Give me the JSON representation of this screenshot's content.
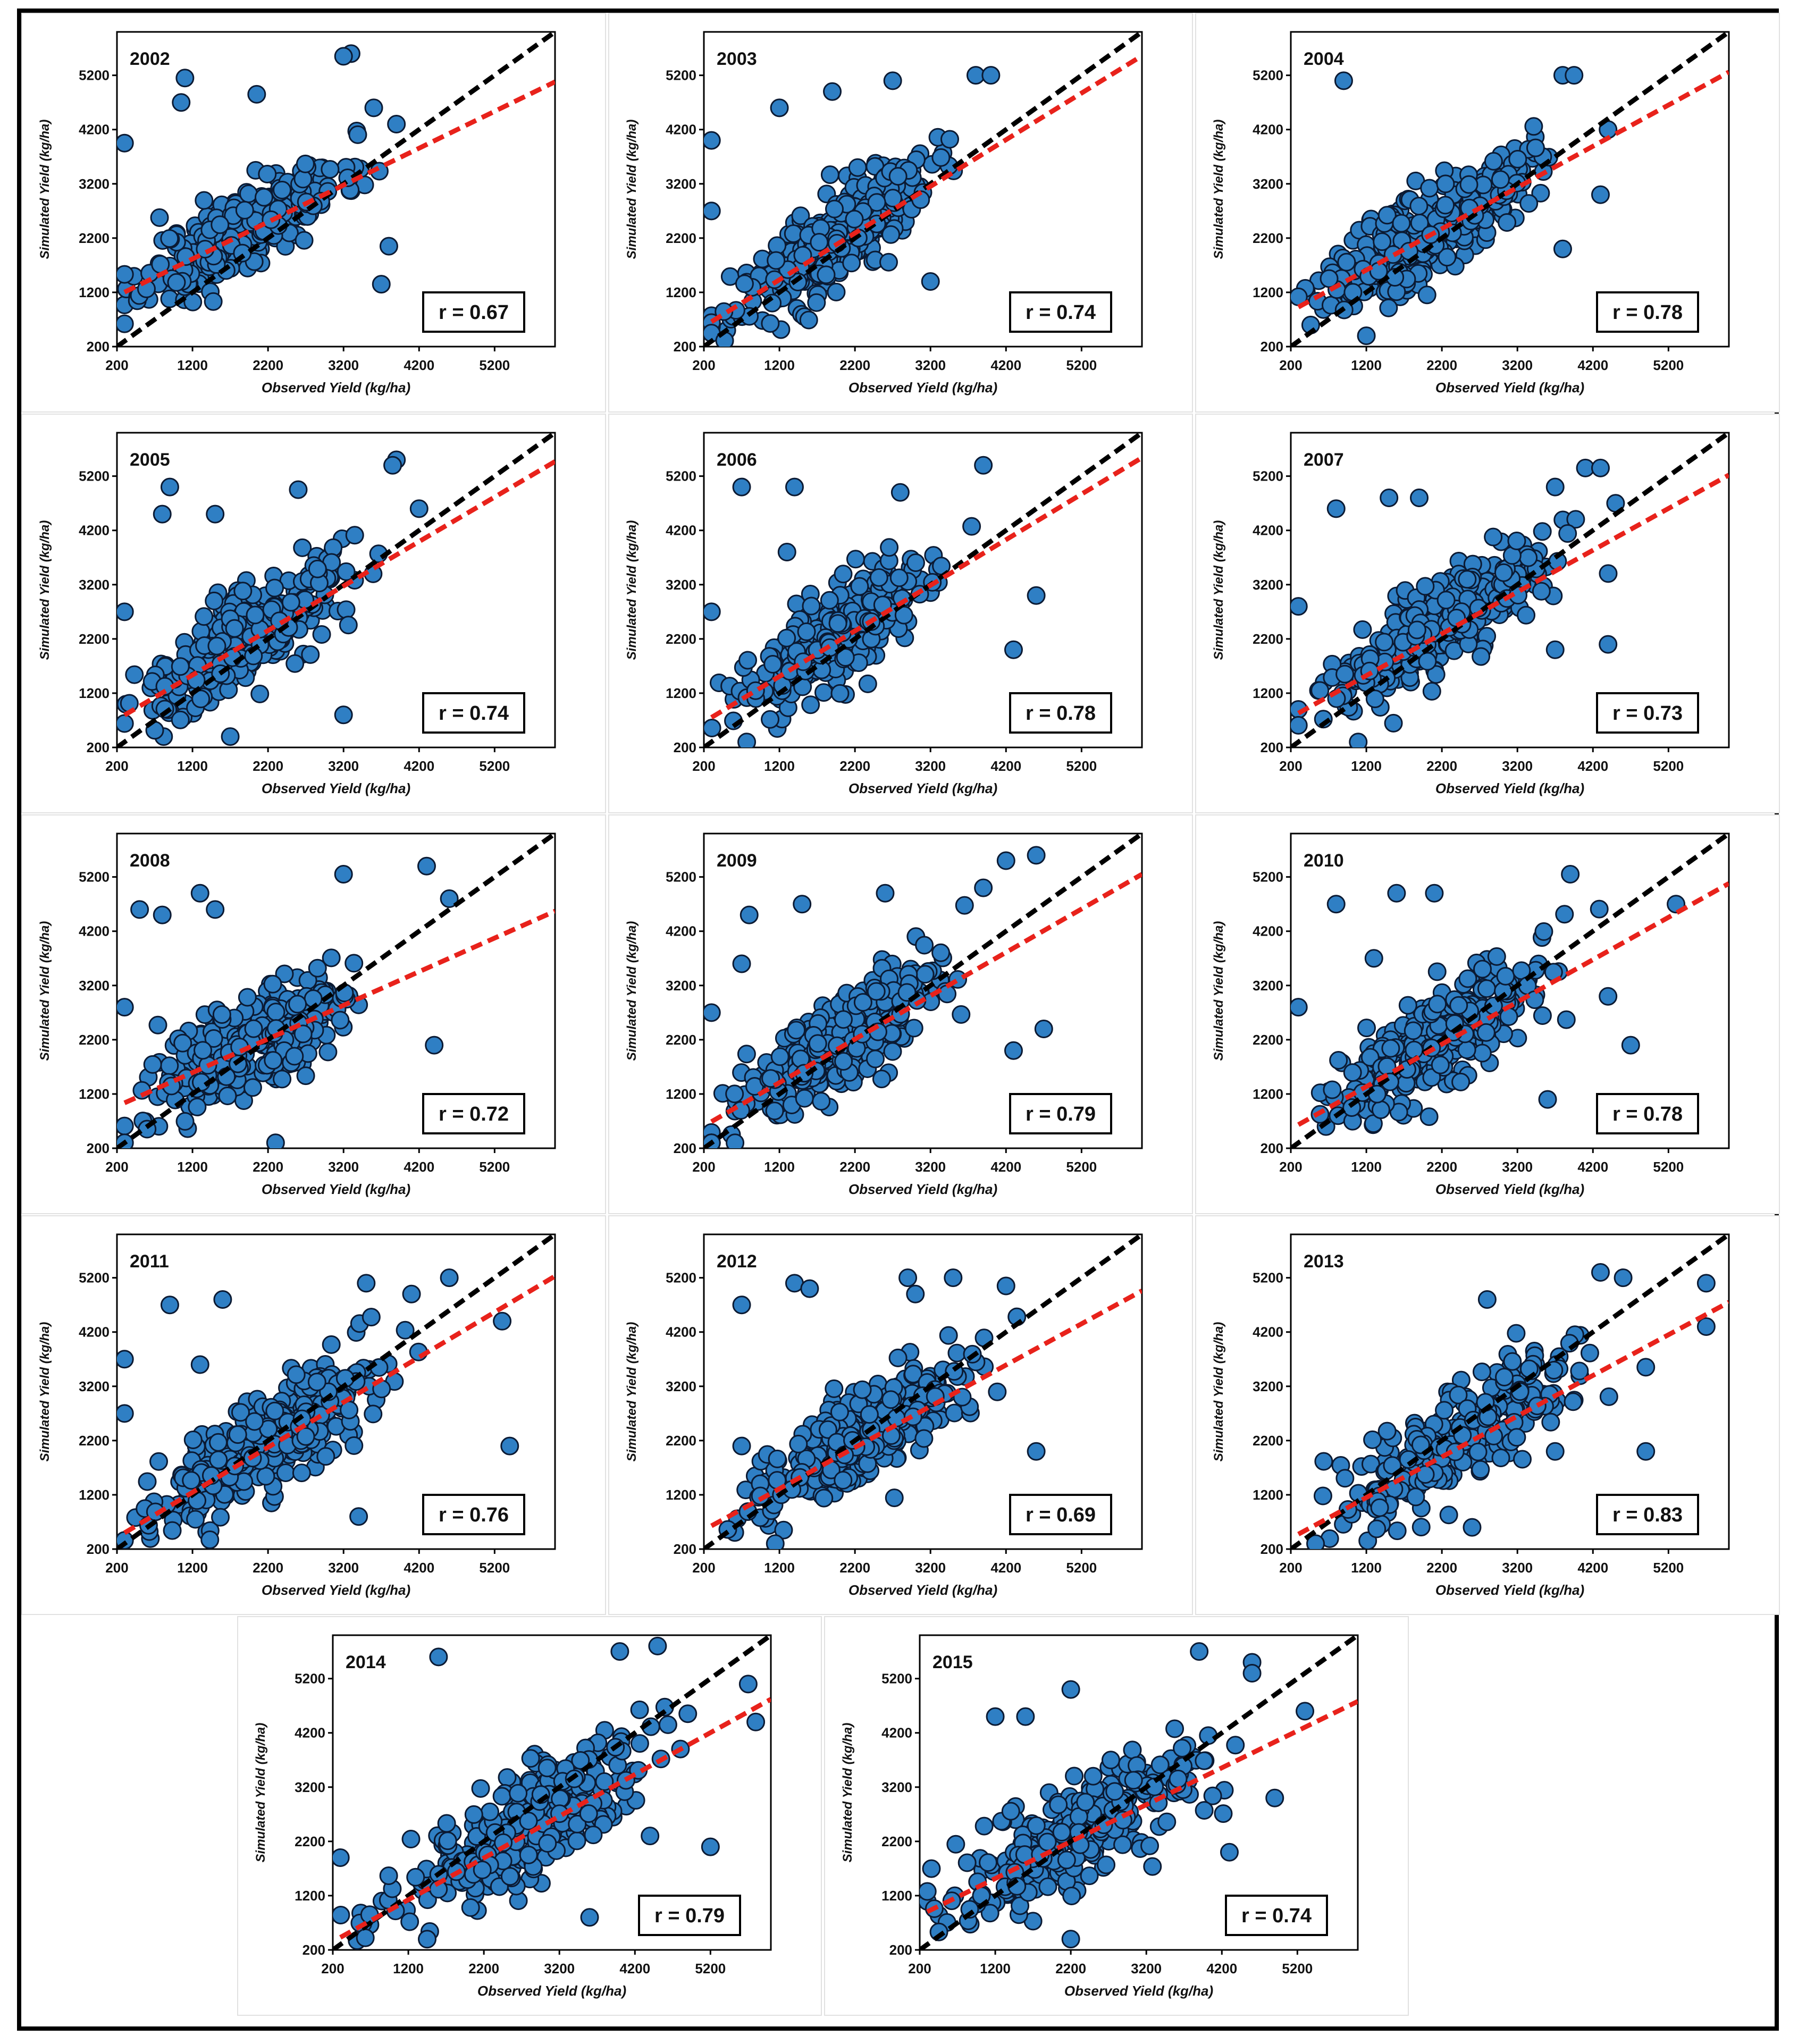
{
  "figure": {
    "axis": {
      "min": 200,
      "max": 6000,
      "ticks": [
        200,
        1200,
        2200,
        3200,
        4200,
        5200
      ]
    },
    "xlabel": "Observed Yield (kg/ha)",
    "ylabel": "Simulated Yield (kg/ha)",
    "colors": {
      "point_fill": "#2f7fc4",
      "point_edge": "#0b1a33",
      "one_to_one": "#000000",
      "fit": "#e8221b"
    }
  },
  "chart_data": [
    {
      "type": "scatter",
      "title": "2002",
      "r_label": "r = 0.67",
      "fit": {
        "intercept": 1000,
        "slope": 0.68
      },
      "seed": 11,
      "n": 330,
      "center": [
        1900,
        2200
      ],
      "spread": [
        850,
        700
      ],
      "outliers": [
        [
          1100,
          5150
        ],
        [
          1050,
          4700
        ],
        [
          2050,
          4850
        ],
        [
          3300,
          5600
        ],
        [
          3200,
          5550
        ],
        [
          300,
          3950
        ],
        [
          3600,
          4600
        ],
        [
          3900,
          4300
        ],
        [
          3700,
          1350
        ],
        [
          3800,
          2050
        ]
      ]
    },
    {
      "type": "scatter",
      "title": "2003",
      "r_label": "r = 0.74",
      "fit": {
        "intercept": 400,
        "slope": 0.86
      },
      "seed": 23,
      "n": 320,
      "center": [
        1900,
        2300
      ],
      "spread": [
        850,
        800
      ],
      "outliers": [
        [
          300,
          4000
        ],
        [
          1200,
          4600
        ],
        [
          1900,
          4900
        ],
        [
          2700,
          5100
        ],
        [
          3800,
          5200
        ],
        [
          4000,
          5200
        ],
        [
          300,
          2700
        ],
        [
          3200,
          1400
        ]
      ]
    },
    {
      "type": "scatter",
      "title": "2004",
      "r_label": "r = 0.78",
      "fit": {
        "intercept": 700,
        "slope": 0.76
      },
      "seed": 37,
      "n": 320,
      "center": [
        2000,
        2300
      ],
      "spread": [
        900,
        850
      ],
      "outliers": [
        [
          900,
          5100
        ],
        [
          3800,
          5200
        ],
        [
          3950,
          5200
        ],
        [
          4400,
          4200
        ],
        [
          3800,
          2000
        ],
        [
          4300,
          3000
        ],
        [
          1200,
          400
        ]
      ]
    },
    {
      "type": "scatter",
      "title": "2005",
      "r_label": "r = 0.74",
      "fit": {
        "intercept": 550,
        "slope": 0.82
      },
      "seed": 41,
      "n": 320,
      "center": [
        1900,
        2200
      ],
      "spread": [
        900,
        850
      ],
      "outliers": [
        [
          900,
          5000
        ],
        [
          800,
          4500
        ],
        [
          1500,
          4500
        ],
        [
          2600,
          4950
        ],
        [
          3900,
          5500
        ],
        [
          3850,
          5400
        ],
        [
          4200,
          4600
        ],
        [
          3200,
          800
        ],
        [
          1700,
          400
        ],
        [
          300,
          2700
        ]
      ]
    },
    {
      "type": "scatter",
      "title": "2006",
      "r_label": "r = 0.78",
      "fit": {
        "intercept": 500,
        "slope": 0.84
      },
      "seed": 53,
      "n": 320,
      "center": [
        2000,
        2200
      ],
      "spread": [
        850,
        850
      ],
      "outliers": [
        [
          700,
          5000
        ],
        [
          1400,
          5000
        ],
        [
          2800,
          4900
        ],
        [
          3900,
          5400
        ],
        [
          1300,
          3800
        ],
        [
          4300,
          2000
        ],
        [
          4600,
          3000
        ],
        [
          300,
          2700
        ]
      ]
    },
    {
      "type": "scatter",
      "title": "2007",
      "r_label": "r = 0.73",
      "fit": {
        "intercept": 600,
        "slope": 0.77
      },
      "seed": 67,
      "n": 320,
      "center": [
        2100,
        2200
      ],
      "spread": [
        900,
        800
      ],
      "outliers": [
        [
          800,
          4600
        ],
        [
          1500,
          4800
        ],
        [
          1900,
          4800
        ],
        [
          3700,
          5000
        ],
        [
          4100,
          5350
        ],
        [
          4300,
          5350
        ],
        [
          4500,
          4700
        ],
        [
          300,
          2800
        ],
        [
          4400,
          2100
        ],
        [
          3700,
          2000
        ]
      ]
    },
    {
      "type": "scatter",
      "title": "2008",
      "r_label": "r = 0.72",
      "fit": {
        "intercept": 850,
        "slope": 0.62
      },
      "seed": 79,
      "n": 320,
      "center": [
        1950,
        2200
      ],
      "spread": [
        900,
        850
      ],
      "outliers": [
        [
          500,
          4600
        ],
        [
          800,
          4500
        ],
        [
          1300,
          4900
        ],
        [
          1500,
          4600
        ],
        [
          3200,
          5250
        ],
        [
          4300,
          5400
        ],
        [
          4600,
          4800
        ],
        [
          300,
          2800
        ],
        [
          4400,
          2100
        ],
        [
          2300,
          300
        ]
      ]
    },
    {
      "type": "scatter",
      "title": "2009",
      "r_label": "r = 0.79",
      "fit": {
        "intercept": 450,
        "slope": 0.8
      },
      "seed": 83,
      "n": 320,
      "center": [
        2000,
        2200
      ],
      "spread": [
        900,
        850
      ],
      "outliers": [
        [
          700,
          3600
        ],
        [
          800,
          4500
        ],
        [
          1500,
          4700
        ],
        [
          2600,
          4900
        ],
        [
          3900,
          5000
        ],
        [
          4200,
          5500
        ],
        [
          4600,
          5600
        ],
        [
          300,
          2700
        ],
        [
          4300,
          2000
        ],
        [
          4700,
          2400
        ]
      ]
    },
    {
      "type": "scatter",
      "title": "2010",
      "r_label": "r = 0.78",
      "fit": {
        "intercept": 400,
        "slope": 0.78
      },
      "seed": 97,
      "n": 320,
      "center": [
        2100,
        2300
      ],
      "spread": [
        950,
        900
      ],
      "outliers": [
        [
          800,
          4700
        ],
        [
          1600,
          4900
        ],
        [
          2100,
          4900
        ],
        [
          3900,
          5250
        ],
        [
          5300,
          4700
        ],
        [
          300,
          2800
        ],
        [
          1300,
          3700
        ],
        [
          3600,
          1100
        ],
        [
          4700,
          2100
        ],
        [
          4400,
          3000
        ]
      ]
    },
    {
      "type": "scatter",
      "title": "2011",
      "r_label": "r = 0.76",
      "fit": {
        "intercept": 250,
        "slope": 0.83
      },
      "seed": 101,
      "n": 320,
      "center": [
        2200,
        2300
      ],
      "spread": [
        950,
        900
      ],
      "outliers": [
        [
          900,
          4700
        ],
        [
          1600,
          4800
        ],
        [
          1300,
          3600
        ],
        [
          3500,
          5100
        ],
        [
          4100,
          4900
        ],
        [
          4600,
          5200
        ],
        [
          5300,
          4400
        ],
        [
          5400,
          2100
        ],
        [
          300,
          2700
        ],
        [
          300,
          3700
        ],
        [
          3400,
          800
        ]
      ]
    },
    {
      "type": "scatter",
      "title": "2012",
      "r_label": "r = 0.69",
      "fit": {
        "intercept": 400,
        "slope": 0.76
      },
      "seed": 113,
      "n": 320,
      "center": [
        2300,
        2200
      ],
      "spread": [
        950,
        850
      ],
      "outliers": [
        [
          700,
          4700
        ],
        [
          1400,
          5100
        ],
        [
          1600,
          5000
        ],
        [
          2900,
          5200
        ],
        [
          3500,
          5200
        ],
        [
          3000,
          4900
        ],
        [
          4200,
          5050
        ],
        [
          4600,
          2000
        ],
        [
          700,
          2100
        ]
      ]
    },
    {
      "type": "scatter",
      "title": "2013",
      "r_label": "r = 0.83",
      "fit": {
        "intercept": 250,
        "slope": 0.75
      },
      "seed": 127,
      "n": 280,
      "center": [
        2500,
        2400
      ],
      "spread": [
        1050,
        950
      ],
      "outliers": [
        [
          2800,
          4800
        ],
        [
          4300,
          5300
        ],
        [
          4600,
          5200
        ],
        [
          5700,
          5100
        ],
        [
          5700,
          4300
        ],
        [
          4900,
          2000
        ],
        [
          3700,
          2000
        ],
        [
          2600,
          600
        ]
      ]
    },
    {
      "type": "scatter",
      "title": "2014",
      "r_label": "r = 0.79",
      "fit": {
        "intercept": 200,
        "slope": 0.77
      },
      "seed": 131,
      "n": 300,
      "center": [
        2600,
        2500
      ],
      "spread": [
        1150,
        1000
      ],
      "outliers": [
        [
          1600,
          5600
        ],
        [
          4000,
          5700
        ],
        [
          4500,
          5800
        ],
        [
          5700,
          5100
        ],
        [
          5800,
          4400
        ],
        [
          5200,
          2100
        ],
        [
          4400,
          2300
        ],
        [
          3600,
          800
        ],
        [
          300,
          1900
        ]
      ]
    },
    {
      "type": "scatter",
      "title": "2015",
      "r_label": "r = 0.74",
      "fit": {
        "intercept": 700,
        "slope": 0.68
      },
      "seed": 139,
      "n": 300,
      "center": [
        2300,
        2400
      ],
      "spread": [
        1000,
        900
      ],
      "outliers": [
        [
          1200,
          4500
        ],
        [
          1600,
          4500
        ],
        [
          2200,
          5000
        ],
        [
          3900,
          5700
        ],
        [
          4600,
          5500
        ],
        [
          4600,
          5300
        ],
        [
          5300,
          4600
        ],
        [
          4300,
          2000
        ],
        [
          4900,
          3000
        ],
        [
          2200,
          400
        ]
      ]
    }
  ]
}
